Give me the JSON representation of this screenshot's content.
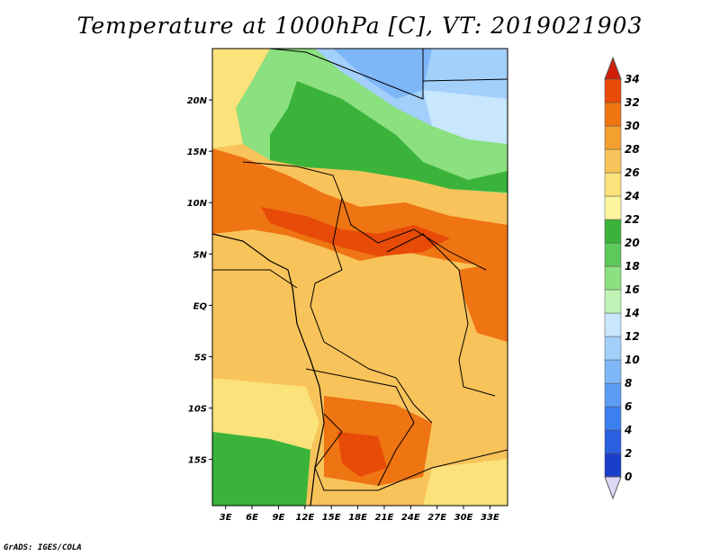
{
  "title": "Temperature at 1000hPa [C], VT: 2019021903",
  "credit": "GrADS: IGES/COLA",
  "map": {
    "lat_labels": [
      "20N",
      "15N",
      "10N",
      "5N",
      "EQ",
      "5S",
      "10S",
      "15S"
    ],
    "lat_values": [
      20,
      15,
      10,
      5,
      0,
      -5,
      -10,
      -15
    ],
    "lon_labels": [
      "3E",
      "6E",
      "9E",
      "12E",
      "15E",
      "18E",
      "21E",
      "24E",
      "27E",
      "30E",
      "33E"
    ],
    "lon_values": [
      3,
      6,
      9,
      12,
      15,
      18,
      21,
      24,
      27,
      30,
      33
    ],
    "lon_range": [
      1.5,
      35
    ],
    "lat_range": [
      -19.5,
      25
    ]
  },
  "colorbar": {
    "levels": [
      0,
      2,
      4,
      6,
      8,
      10,
      12,
      14,
      16,
      18,
      20,
      22,
      24,
      26,
      28,
      30,
      32,
      34
    ],
    "colors": [
      "#10106a",
      "#1a3ec8",
      "#2a5fe0",
      "#3c7ff0",
      "#5b9cf4",
      "#7eb7f8",
      "#a3cffb",
      "#c8e6fd",
      "#bff3b5",
      "#8be07f",
      "#5cc95a",
      "#3bb33b",
      "#fdf4a0",
      "#fbe27b",
      "#f8c35a",
      "#f3a030",
      "#ef7412",
      "#e84a08",
      "#d42408"
    ],
    "below_color": "#dcd8f8",
    "above_color": "#d01e08"
  }
}
